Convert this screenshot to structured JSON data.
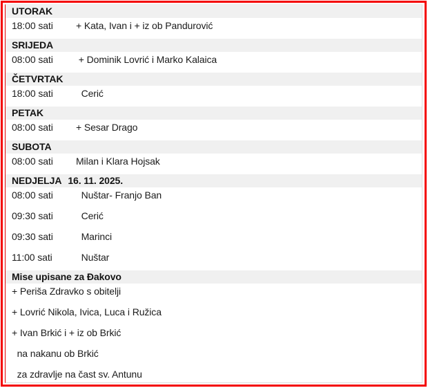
{
  "colors": {
    "frame_red": "#f40000",
    "left_border_red": "#e40000",
    "band_gray": "#f0f0f0",
    "table_border_gray": "#dcdcdc",
    "text": "#1b1b1b"
  },
  "schedule": {
    "sections": [
      {
        "day": "UTORAK",
        "date": "",
        "masses": [
          {
            "time": "18:00 sati",
            "name": "+ Kata, Ivan i + iz ob Pandurović"
          }
        ]
      },
      {
        "day": "SRIJEDA",
        "date": "",
        "masses": [
          {
            "time": "08:00 sati",
            "name": " + Dominik Lovrić i Marko Kalaica"
          }
        ]
      },
      {
        "day": "ČETVRTAK",
        "date": "",
        "masses": [
          {
            "time": "18:00 sati",
            "name": "  Cerić"
          }
        ]
      },
      {
        "day": "PETAK",
        "date": "",
        "masses": [
          {
            "time": "08:00 sati",
            "name": "+ Sesar Drago"
          }
        ]
      },
      {
        "day": "SUBOTA",
        "date": "",
        "masses": [
          {
            "time": "08:00 sati",
            "name": "Milan i Klara Hojsak"
          }
        ]
      },
      {
        "day": "NEDJELJA",
        "date": "16. 11. 2025.",
        "masses": [
          {
            "time": "08:00 sati",
            "name": "  Nuštar- Franjo Ban"
          },
          {
            "time": "09:30 sati",
            "name": "  Cerić"
          },
          {
            "time": "09:30 sati",
            "name": "  Marinci"
          },
          {
            "time": "11:00 sati",
            "name": "  Nuštar"
          }
        ]
      }
    ],
    "intentions": {
      "title": "Mise upisane za Đakovo",
      "items": [
        "+ Periša Zdravko s obitelji",
        "+ Lovrić Nikola, Ivica, Luca i Ružica",
        "+ Ivan Brkić i + iz ob Brkić",
        "  na nakanu ob Brkić",
        "  za zdravlje na čast sv. Antunu"
      ]
    }
  }
}
